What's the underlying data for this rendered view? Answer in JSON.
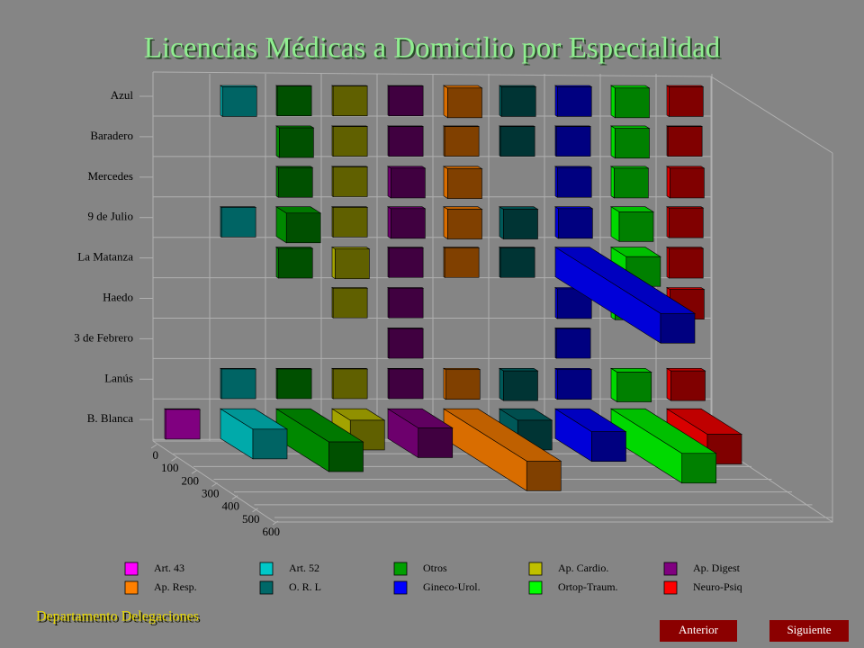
{
  "chart_data": {
    "type": "bar3d",
    "title": "Licencias Médicas a Domicilio por Especialidad",
    "categories": [
      "Azul",
      "Baradero",
      "Mercedes",
      "9 de Julio",
      "La Matanza",
      "Haedo",
      "3 de Febrero",
      "Lanús",
      "B. Blanca"
    ],
    "ylim": [
      0,
      600
    ],
    "yticks": [
      0,
      100,
      200,
      300,
      400,
      500,
      600
    ],
    "grid": true,
    "series": [
      {
        "name": "Art. 43",
        "color": "#ff00ff",
        "values": [
          null,
          null,
          null,
          null,
          null,
          null,
          null,
          null,
          5
        ]
      },
      {
        "name": "Art. 52",
        "color": "#00c8c8",
        "values": [
          10,
          null,
          null,
          5,
          null,
          null,
          null,
          5,
          160
        ]
      },
      {
        "name": "Otros",
        "color": "#00a000",
        "values": [
          5,
          15,
          10,
          50,
          10,
          null,
          null,
          5,
          260
        ]
      },
      {
        "name": "Ap. Cardio.",
        "color": "#c0c000",
        "values": [
          5,
          5,
          5,
          5,
          15,
          5,
          null,
          5,
          90
        ]
      },
      {
        "name": "Ap. Digest",
        "color": "#800080",
        "values": [
          5,
          5,
          15,
          15,
          5,
          5,
          5,
          5,
          150
        ]
      },
      {
        "name": "Ap. Resp.",
        "color": "#ff8000",
        "values": [
          20,
          5,
          20,
          20,
          5,
          null,
          null,
          10,
          410
        ]
      },
      {
        "name": "O. R. L",
        "color": "#006868",
        "values": [
          10,
          5,
          null,
          20,
          5,
          null,
          null,
          20,
          90
        ]
      },
      {
        "name": "Gineco-Urol.",
        "color": "#0000ff",
        "values": [
          10,
          5,
          10,
          15,
          520,
          10,
          5,
          10,
          180
        ]
      },
      {
        "name": "Ortop-Traum.",
        "color": "#00ff00",
        "values": [
          20,
          20,
          15,
          40,
          75,
          20,
          null,
          30,
          350
        ]
      },
      {
        "name": "Neuro-Psiq",
        "color": "#ff0000",
        "values": [
          10,
          5,
          15,
          10,
          10,
          15,
          null,
          20,
          200
        ]
      }
    ]
  },
  "footer": "Departamento Delegaciones",
  "buttons": [
    "Anterior",
    "Siguiente"
  ]
}
